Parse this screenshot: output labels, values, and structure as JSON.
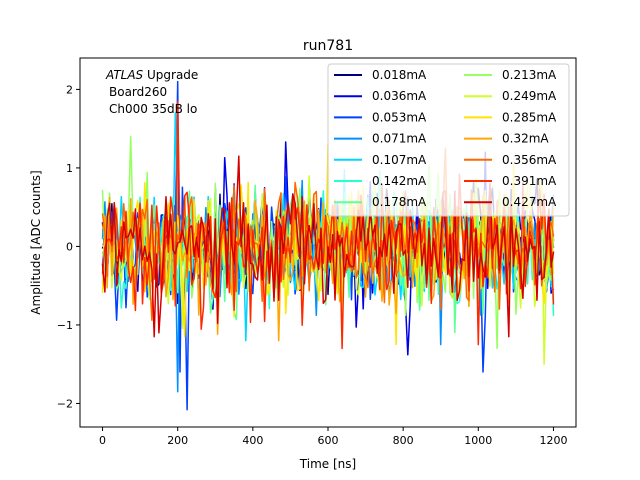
{
  "chart_data": {
    "type": "line",
    "title": "run781",
    "xlabel": "Time [ns]",
    "ylabel": "Amplitude [ADC counts]",
    "xlim": [
      -60,
      1260
    ],
    "ylim": [
      -2.3,
      2.4
    ],
    "xticks": [
      0,
      200,
      400,
      600,
      800,
      1000,
      1200
    ],
    "yticks": [
      -2,
      -1,
      0,
      1,
      2
    ],
    "grid": false,
    "legend_position": "top-right",
    "legend_columns": 2,
    "annotation": {
      "experiment": "ATLAS",
      "experiment_suffix": " Upgrade",
      "board": "Board260",
      "channel": "Ch000 35dB lo"
    },
    "x_range": [
      0,
      1200
    ],
    "sample_spacing_ns": 6.25,
    "series": [
      {
        "name": "0.018mA",
        "color": "#00007f",
        "noise_sigma": 0.32,
        "spikes": []
      },
      {
        "name": "0.036mA",
        "color": "#0000e8",
        "noise_sigma": 0.33,
        "spikes": [
          [
            325,
            1.13
          ],
          [
            487,
            1.33
          ],
          [
            810,
            -1.38
          ],
          [
            1020,
            1.2
          ]
        ]
      },
      {
        "name": "0.053mA",
        "color": "#0040ff",
        "noise_sigma": 0.33,
        "spikes": [
          [
            200,
            2.1
          ],
          [
            206,
            -1.6
          ],
          [
            225,
            -2.08
          ],
          [
            1015,
            -1.6
          ]
        ]
      },
      {
        "name": "0.071mA",
        "color": "#0090ff",
        "noise_sigma": 0.33,
        "spikes": [
          [
            198,
            -1.85
          ],
          [
            900,
            -1.25
          ]
        ]
      },
      {
        "name": "0.107mA",
        "color": "#00d4ff",
        "noise_sigma": 0.34,
        "spikes": [
          [
            195,
            1.7
          ],
          [
            380,
            -1.2
          ]
        ]
      },
      {
        "name": "0.142mA",
        "color": "#29ffce",
        "noise_sigma": 0.34,
        "spikes": []
      },
      {
        "name": "0.178mA",
        "color": "#60ff97",
        "noise_sigma": 0.35,
        "spikes": []
      },
      {
        "name": "0.213mA",
        "color": "#97ff60",
        "noise_sigma": 0.35,
        "spikes": [
          [
            75,
            1.4
          ],
          [
            1050,
            -1.3
          ]
        ]
      },
      {
        "name": "0.249mA",
        "color": "#ceff29",
        "noise_sigma": 0.36,
        "spikes": [
          [
            1175,
            -1.5
          ]
        ]
      },
      {
        "name": "0.285mA",
        "color": "#ffe500",
        "noise_sigma": 0.36,
        "spikes": [
          [
            600,
            1.3
          ],
          [
            780,
            -1.25
          ]
        ]
      },
      {
        "name": "0.32mA",
        "color": "#ffa600",
        "noise_sigma": 0.37,
        "spikes": [
          [
            470,
            -1.2
          ]
        ]
      },
      {
        "name": "0.356mA",
        "color": "#ff6800",
        "noise_sigma": 0.37,
        "spikes": [
          [
            910,
            1.25
          ]
        ]
      },
      {
        "name": "0.391mA",
        "color": "#ff2900",
        "noise_sigma": 0.38,
        "spikes": [
          [
            200,
            -1.6
          ],
          [
            202,
            1.85
          ],
          [
            640,
            -1.3
          ],
          [
            1000,
            -1.25
          ]
        ]
      },
      {
        "name": "0.427mA",
        "color": "#d40000",
        "noise_sigma": 0.38,
        "spikes": [
          [
            150,
            -1.1
          ],
          [
            360,
            1.15
          ]
        ]
      }
    ]
  }
}
